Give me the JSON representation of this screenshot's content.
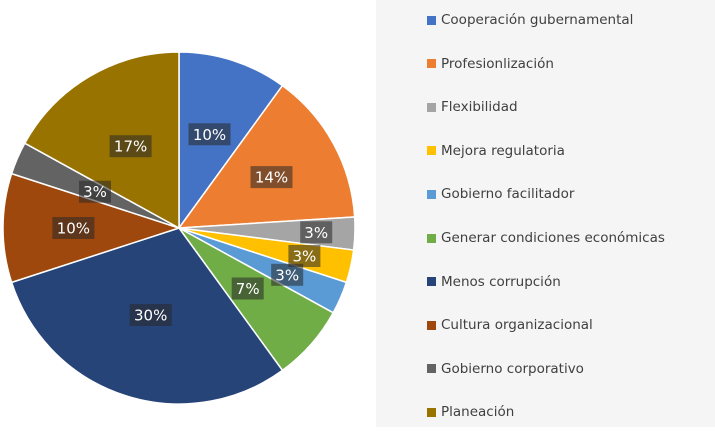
{
  "chart_data": {
    "type": "pie",
    "title": "",
    "categories": [
      "Cooperación gubernamental",
      "Profesionlización",
      "Flexibilidad",
      "Mejora regulatoria",
      "Gobierno facilitador",
      "Generar condiciones económicas",
      "Menos corrupción",
      "Cultura organizacional",
      "Gobierno corporativo",
      "Planeación"
    ],
    "values": [
      10,
      14,
      3,
      3,
      3,
      7,
      30,
      10,
      3,
      17
    ],
    "labels": [
      "10%",
      "14%",
      "3%",
      "3%",
      "3%",
      "7%",
      "30%",
      "10%",
      "3%",
      "17%"
    ],
    "colors": [
      "#4472c4",
      "#ed7d31",
      "#a5a5a5",
      "#ffc000",
      "#5b9bd5",
      "#70ad47",
      "#264478",
      "#9e480e",
      "#636363",
      "#997300"
    ],
    "legend_position": "right"
  }
}
